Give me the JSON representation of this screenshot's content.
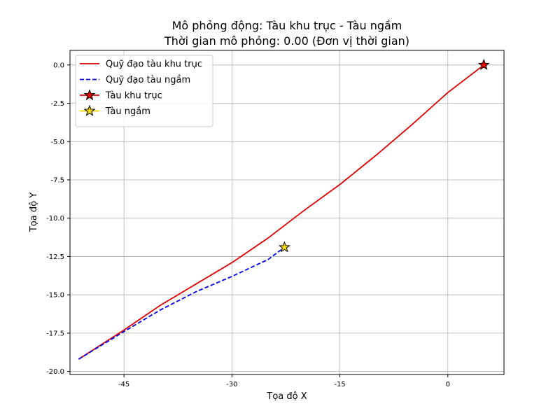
{
  "chart_data": {
    "type": "line",
    "title": "Mô phỏng động: Tàu khu trục - Tàu ngầm",
    "subtitle": "Thời gian mô phỏng: 0.00 (Đơn vị thời gian)",
    "xlabel": "Tọa độ X",
    "ylabel": "Tọa độ Y",
    "xlim": [
      -52.5,
      7.8
    ],
    "ylim": [
      -20.2,
      0.95
    ],
    "xticks": [
      -45,
      -30,
      -15,
      0
    ],
    "xtick_labels": [
      "-45",
      "-30",
      "-15",
      "0"
    ],
    "yticks": [
      0,
      -2.5,
      -5,
      -7.5,
      -10,
      -12.5,
      -15,
      -17.5,
      -20
    ],
    "ytick_labels": [
      "0.0",
      "-2.5",
      "-5.0",
      "-7.5",
      "-10.0",
      "-12.5",
      "-15.0",
      "-17.5",
      "-20.0"
    ],
    "grid": true,
    "legend_position": "top-left",
    "series": [
      {
        "name": "Quỹ đạo tàu khu trục",
        "style": "solid",
        "color": "#e00000",
        "x": [
          -51.3,
          -45,
          -40,
          -35,
          -30,
          -25,
          -20,
          -15,
          -10,
          -5,
          0,
          5
        ],
        "y": [
          -19.2,
          -17.3,
          -15.7,
          -14.3,
          -12.9,
          -11.3,
          -9.5,
          -7.8,
          -5.9,
          -3.9,
          -1.8,
          0.0
        ]
      },
      {
        "name": "Quỹ đạo tàu ngầm",
        "style": "dashed",
        "color": "#0000ee",
        "x": [
          -51.3,
          -45,
          -40,
          -35,
          -30,
          -25,
          -22.7
        ],
        "y": [
          -19.2,
          -17.4,
          -16.0,
          -14.8,
          -13.8,
          -12.7,
          -11.9
        ]
      },
      {
        "name": "Tàu khu trục",
        "style": "marker",
        "marker": "star",
        "color": "#e00000",
        "x": [
          5
        ],
        "y": [
          0.0
        ]
      },
      {
        "name": "Tàu ngầm",
        "style": "marker",
        "marker": "star",
        "color": "#f5d800",
        "x": [
          -22.7
        ],
        "y": [
          -11.9
        ]
      }
    ]
  }
}
